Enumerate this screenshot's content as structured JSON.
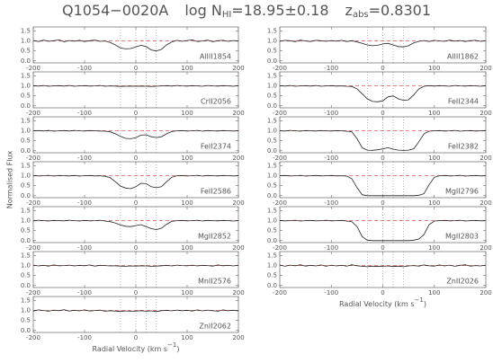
{
  "figure": {
    "title": [
      "Q1054−0020A",
      "log N",
      "HI",
      "=18.95±0.18",
      "z",
      "abs",
      "=0.8301"
    ],
    "ylabel": "Normalised Flux",
    "xlabel": [
      "Radial Velocity (km s",
      "−1",
      ")"
    ],
    "xlim": [
      -200,
      200
    ],
    "xticks": [
      -200,
      -100,
      0,
      100,
      200
    ],
    "ylim": [
      -0.1,
      1.7
    ],
    "yticks": [
      {
        "value": 0,
        "label": "0.0"
      },
      0.5,
      {
        "value": 1,
        "label": "1.0"
      },
      1.5
    ],
    "continuum": 1,
    "continuum_color": "#e03030",
    "components": [
      -30,
      0,
      20,
      40
    ],
    "line_color": "#222222",
    "x": [
      -200,
      -190,
      -180,
      -170,
      -160,
      -150,
      -140,
      -130,
      -120,
      -110,
      -100,
      -90,
      -80,
      -70,
      -60,
      -50,
      -40,
      -30,
      -20,
      -10,
      0,
      10,
      20,
      30,
      40,
      50,
      60,
      70,
      80,
      90,
      100,
      110,
      120,
      130,
      140,
      150,
      160,
      170,
      180,
      190,
      200
    ]
  },
  "chart_data": [
    {
      "type": "line",
      "label": "AlIII1854",
      "values": [
        1.02,
        0.97,
        1.04,
        0.98,
        1.01,
        1.05,
        0.96,
        1.02,
        0.99,
        1.03,
        0.97,
        1.01,
        1.04,
        0.98,
        1.0,
        0.92,
        0.8,
        0.65,
        0.6,
        0.62,
        0.7,
        0.78,
        0.72,
        0.55,
        0.5,
        0.58,
        0.8,
        0.95,
        1.03,
        0.98,
        1.02,
        1.05,
        0.97,
        1.0,
        1.04,
        0.96,
        1.01,
        1.03,
        0.98,
        1.02,
        0.99
      ]
    },
    {
      "type": "line",
      "label": "CrII2056",
      "values": [
        1.01,
        0.99,
        1.02,
        0.98,
        1.0,
        1.01,
        0.99,
        1.02,
        0.98,
        1.0,
        1.01,
        0.99,
        1.0,
        1.02,
        0.98,
        1.0,
        0.99,
        0.97,
        0.98,
        0.99,
        0.98,
        0.99,
        0.98,
        0.97,
        0.98,
        1.0,
        1.01,
        0.99,
        1.02,
        1.0,
        0.99,
        1.01,
        1.0,
        0.98,
        1.02,
        1.0,
        0.99,
        1.01,
        1.0,
        0.98,
        1.01
      ]
    },
    {
      "type": "line",
      "label": "FeII2374",
      "values": [
        1.0,
        1.01,
        0.99,
        1.02,
        0.98,
        1.0,
        1.01,
        0.99,
        1.02,
        1.0,
        0.99,
        1.01,
        1.0,
        0.99,
        0.98,
        0.95,
        0.85,
        0.72,
        0.62,
        0.6,
        0.65,
        0.78,
        0.8,
        0.7,
        0.66,
        0.7,
        0.85,
        0.96,
        1.0,
        1.01,
        0.99,
        1.0,
        1.02,
        0.98,
        1.01,
        1.0,
        0.99,
        1.01,
        1.0,
        0.99,
        1.0
      ]
    },
    {
      "type": "line",
      "label": "FeII2586",
      "values": [
        1.01,
        0.99,
        1.0,
        1.02,
        0.98,
        1.01,
        1.0,
        0.99,
        1.01,
        0.98,
        1.0,
        1.01,
        0.99,
        1.0,
        0.97,
        0.9,
        0.7,
        0.48,
        0.38,
        0.35,
        0.45,
        0.62,
        0.6,
        0.45,
        0.4,
        0.45,
        0.7,
        0.92,
        1.0,
        1.01,
        0.99,
        1.0,
        1.02,
        0.98,
        1.01,
        1.0,
        0.99,
        1.01,
        1.0,
        0.99,
        1.0
      ]
    },
    {
      "type": "line",
      "label": "MgII2852",
      "values": [
        0.99,
        1.02,
        1.0,
        0.98,
        1.01,
        1.0,
        0.99,
        1.02,
        1.0,
        0.98,
        1.01,
        0.99,
        1.0,
        1.02,
        0.98,
        0.95,
        0.88,
        0.78,
        0.72,
        0.7,
        0.75,
        0.8,
        0.7,
        0.6,
        0.55,
        0.62,
        0.82,
        0.96,
        1.0,
        1.01,
        0.99,
        1.0,
        1.02,
        0.98,
        1.01,
        1.0,
        0.99,
        1.01,
        1.0,
        0.98,
        1.0
      ]
    },
    {
      "type": "line",
      "label": "MnII2576",
      "values": [
        1.02,
        0.98,
        1.01,
        0.97,
        1.03,
        0.99,
        1.0,
        1.02,
        0.98,
        1.01,
        0.99,
        1.03,
        0.97,
        1.01,
        1.0,
        0.98,
        0.99,
        0.97,
        0.96,
        0.98,
        0.97,
        0.99,
        0.98,
        0.96,
        0.97,
        0.99,
        1.01,
        0.98,
        1.02,
        1.0,
        0.99,
        1.02,
        0.98,
        1.01,
        1.0,
        0.97,
        1.03,
        0.99,
        1.01,
        0.98,
        1.02
      ]
    },
    {
      "type": "line",
      "label": "ZnII2062",
      "values": [
        0.97,
        1.03,
        1.0,
        0.96,
        1.02,
        0.99,
        1.04,
        0.97,
        1.01,
        0.98,
        1.03,
        0.97,
        1.0,
        1.02,
        0.96,
        0.99,
        0.97,
        0.95,
        0.98,
        0.96,
        0.97,
        0.99,
        0.96,
        0.98,
        0.95,
        0.99,
        1.01,
        0.98,
        1.02,
        0.99,
        1.01,
        0.97,
        1.03,
        0.98,
        1.02,
        0.99,
        0.96,
        1.03,
        0.99,
        1.01,
        0.98
      ]
    },
    {
      "type": "line",
      "label": "AlIII1862",
      "values": [
        0.98,
        1.03,
        1.01,
        0.96,
        1.04,
        1.0,
        0.97,
        1.03,
        1.01,
        0.98,
        1.02,
        0.99,
        1.03,
        0.97,
        1.01,
        0.95,
        0.88,
        0.8,
        0.76,
        0.78,
        0.85,
        0.88,
        0.8,
        0.72,
        0.7,
        0.76,
        0.9,
        0.98,
        1.02,
        0.97,
        1.03,
        1.0,
        0.98,
        1.04,
        0.99,
        1.02,
        0.97,
        1.01,
        1.03,
        0.98,
        1.01
      ]
    },
    {
      "type": "line",
      "label": "FeII2344",
      "values": [
        1.01,
        0.99,
        1.02,
        0.98,
        1.0,
        1.01,
        0.99,
        1.02,
        0.98,
        1.0,
        1.01,
        0.99,
        1.0,
        0.98,
        0.97,
        0.85,
        0.6,
        0.35,
        0.22,
        0.2,
        0.25,
        0.45,
        0.5,
        0.35,
        0.28,
        0.3,
        0.55,
        0.85,
        0.98,
        1.01,
        0.99,
        1.01,
        1.0,
        0.98,
        1.02,
        1.0,
        0.99,
        1.01,
        1.0,
        0.98,
        1.01
      ]
    },
    {
      "type": "line",
      "label": "FeII2382",
      "values": [
        1.0,
        0.99,
        1.02,
        1.0,
        0.98,
        1.01,
        1.0,
        0.99,
        1.01,
        1.0,
        0.99,
        1.01,
        1.0,
        0.98,
        0.95,
        0.6,
        0.15,
        0.03,
        0.02,
        0.05,
        0.1,
        0.15,
        0.08,
        0.03,
        0.02,
        0.03,
        0.1,
        0.45,
        0.85,
        0.98,
        1.0,
        1.01,
        0.99,
        1.0,
        1.02,
        0.98,
        1.0,
        1.01,
        0.99,
        1.0,
        1.01
      ]
    },
    {
      "type": "line",
      "label": "MgII2796",
      "values": [
        1.0,
        1.01,
        0.99,
        1.0,
        1.02,
        0.98,
        1.0,
        1.01,
        0.99,
        1.0,
        1.01,
        0.99,
        1.0,
        0.98,
        0.85,
        0.4,
        0.05,
        0.0,
        0.0,
        0.0,
        0.0,
        0.0,
        0.0,
        0.0,
        0.0,
        0.0,
        0.0,
        0.02,
        0.1,
        0.55,
        0.92,
        1.0,
        1.01,
        0.99,
        1.0,
        1.02,
        0.98,
        1.0,
        1.01,
        0.99,
        1.0
      ]
    },
    {
      "type": "line",
      "label": "MgII2803",
      "values": [
        1.01,
        0.99,
        1.0,
        1.02,
        0.98,
        1.0,
        1.01,
        0.99,
        1.0,
        1.02,
        0.99,
        1.0,
        1.01,
        0.98,
        0.95,
        0.7,
        0.2,
        0.02,
        0.0,
        0.0,
        0.0,
        0.0,
        0.0,
        0.0,
        0.0,
        0.0,
        0.02,
        0.08,
        0.3,
        0.8,
        0.98,
        1.0,
        1.01,
        0.99,
        1.0,
        1.02,
        0.98,
        1.0,
        1.01,
        0.99,
        1.0
      ]
    },
    {
      "type": "line",
      "label": "ZnII2026",
      "values": [
        1.03,
        0.96,
        1.02,
        0.99,
        1.04,
        0.97,
        1.01,
        0.98,
        1.03,
        0.96,
        1.02,
        0.98,
        1.01,
        0.97,
        1.04,
        0.99,
        0.96,
        0.94,
        0.97,
        0.95,
        0.96,
        0.98,
        0.95,
        0.97,
        0.94,
        0.98,
        1.0,
        0.97,
        1.03,
        0.99,
        0.97,
        1.03,
        0.98,
        1.02,
        0.96,
        1.01,
        1.04,
        0.97,
        1.0,
        0.98,
        1.02
      ]
    }
  ]
}
